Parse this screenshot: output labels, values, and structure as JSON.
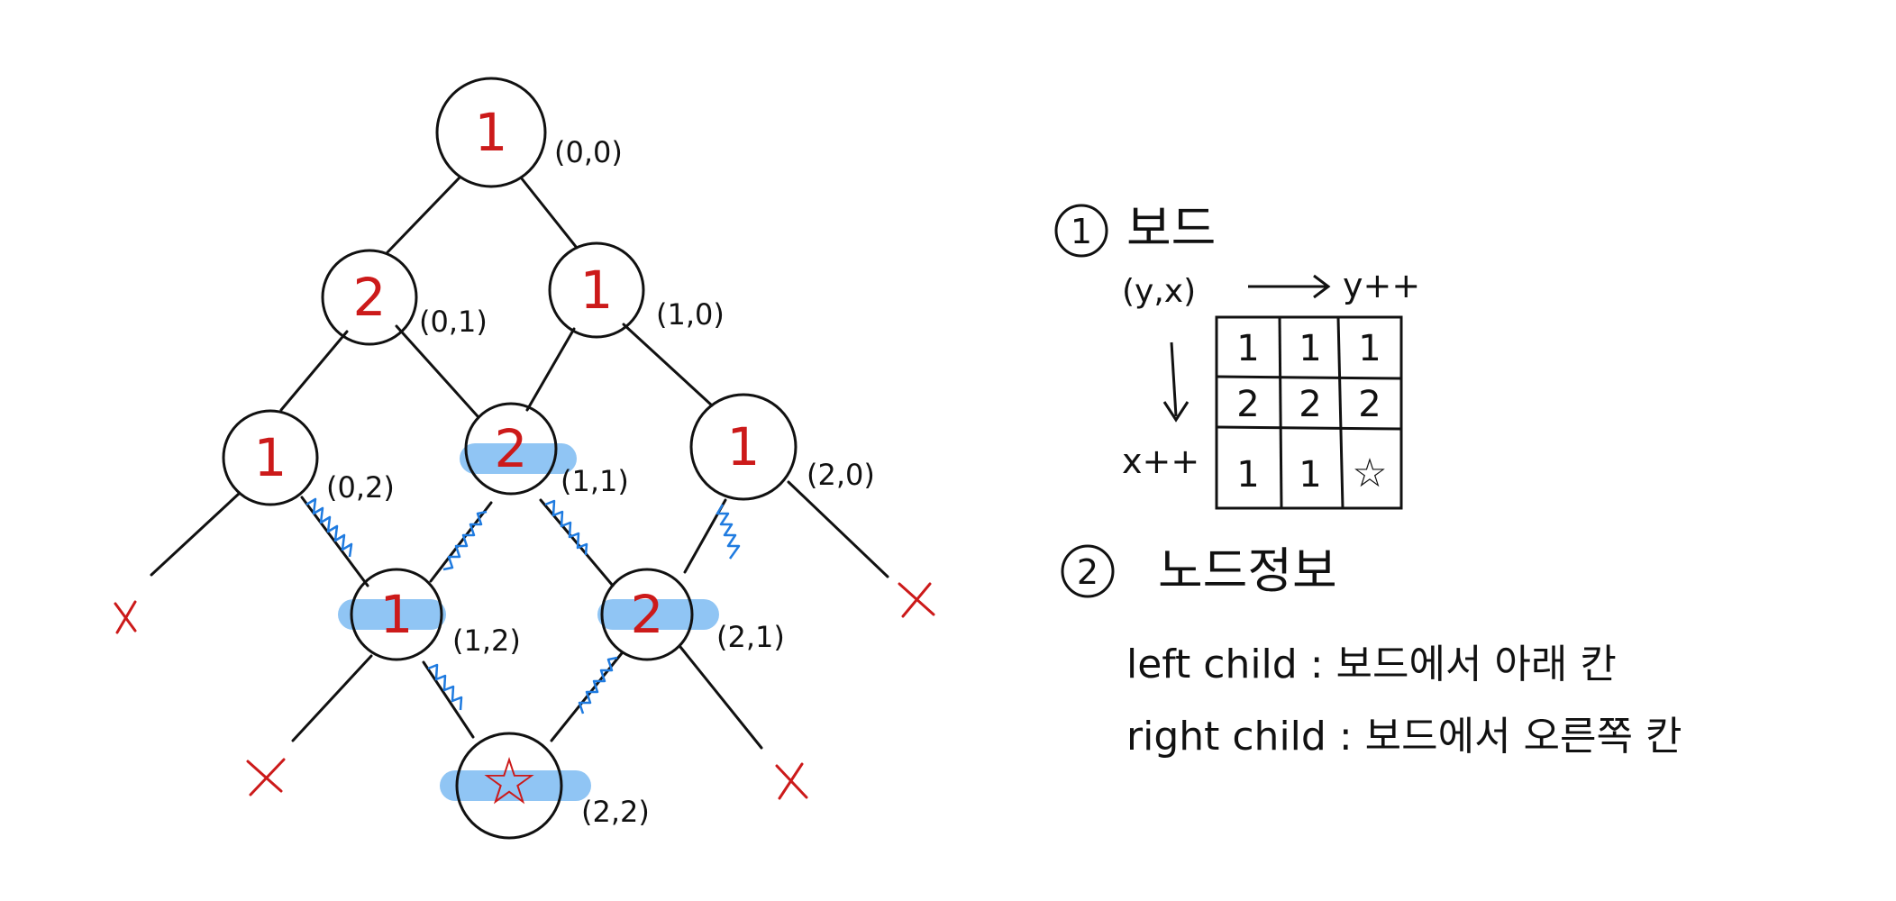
{
  "tree": {
    "nodes": [
      {
        "id": "n00",
        "value": "1",
        "coord": "(0,0)"
      },
      {
        "id": "n01",
        "value": "2",
        "coord": "(0,1)"
      },
      {
        "id": "n10",
        "value": "1",
        "coord": "(1,0)"
      },
      {
        "id": "n02",
        "value": "1",
        "coord": "(0,2)"
      },
      {
        "id": "n11",
        "value": "2",
        "coord": "(1,1)"
      },
      {
        "id": "n20",
        "value": "1",
        "coord": "(2,0)"
      },
      {
        "id": "n12",
        "value": "1",
        "coord": "(1,2)"
      },
      {
        "id": "n21",
        "value": "2",
        "coord": "(2,1)"
      },
      {
        "id": "n22",
        "value": "☆",
        "coord": "(2,2)"
      }
    ],
    "dead_end_mark": "X"
  },
  "notes": {
    "section1": {
      "number": "1",
      "title": "보드"
    },
    "axis_label": "(y,x)",
    "y_label": "y++",
    "x_label": "x++",
    "board": [
      [
        "1",
        "1",
        "1"
      ],
      [
        "2",
        "2",
        "2"
      ],
      [
        "1",
        "1",
        "☆"
      ]
    ],
    "section2": {
      "number": "2",
      "title": "노드정보"
    },
    "left_child": "left child : 보드에서 아래 칸",
    "right_child": "right child : 보드에서 오른쪽 칸"
  }
}
